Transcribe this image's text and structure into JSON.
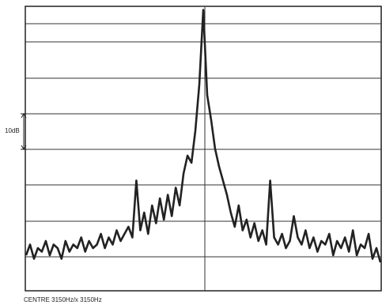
{
  "chart_data": {
    "type": "line",
    "scale_label": "10dB",
    "caption": "CENTRE 3150Hz/x 3150Hz",
    "color": "#222222",
    "ylim": [
      0,
      80
    ],
    "values": [
      10,
      13,
      9,
      12,
      11,
      14,
      10,
      13,
      12,
      9,
      14,
      11,
      13,
      12,
      15,
      11,
      14,
      12,
      13,
      16,
      12,
      15,
      13,
      17,
      14,
      16,
      18,
      15,
      31,
      17,
      22,
      16,
      24,
      19,
      26,
      20,
      27,
      21,
      29,
      24,
      33,
      38,
      36,
      45,
      58,
      79,
      55,
      48,
      40,
      35,
      31,
      27,
      22,
      18,
      24,
      17,
      20,
      15,
      19,
      14,
      17,
      13,
      31,
      15,
      13,
      16,
      12,
      14,
      21,
      15,
      13,
      17,
      12,
      15,
      11,
      14,
      13,
      16,
      10,
      14,
      12,
      15,
      11,
      17,
      10,
      13,
      12,
      16,
      9,
      12,
      8
    ]
  }
}
